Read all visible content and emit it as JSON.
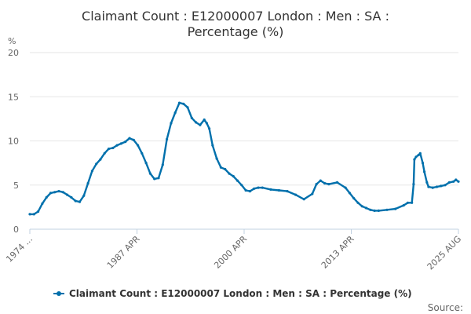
{
  "chart_data": {
    "type": "line",
    "title_lines": [
      "Claimant Count : E12000007 London : Men : SA :",
      "Percentage (%)"
    ],
    "ylabel": "%",
    "ylim": [
      0,
      20
    ],
    "y_ticks": [
      "0",
      "5",
      "10",
      "15",
      "20"
    ],
    "x_ticks": [
      "1974 ...",
      "1987 APR",
      "2000 APR",
      "2013 APR",
      "2025 AUG"
    ],
    "x_range": [
      1974.0,
      2025.6
    ],
    "grid": true,
    "legend_position": "bottom",
    "series": [
      {
        "name": "Claimant Count : E12000007 London : Men : SA : Percentage (%)",
        "color": "#0070ac",
        "x": [
          1974.0,
          1974.5,
          1975.0,
          1975.5,
          1976.0,
          1976.5,
          1977.0,
          1977.5,
          1978.0,
          1978.5,
          1979.0,
          1979.5,
          1980.0,
          1980.5,
          1981.0,
          1981.5,
          1982.0,
          1982.5,
          1983.0,
          1983.5,
          1984.0,
          1984.5,
          1985.0,
          1985.5,
          1986.0,
          1986.5,
          1987.0,
          1987.5,
          1988.0,
          1988.5,
          1989.0,
          1989.5,
          1990.0,
          1990.5,
          1991.0,
          1991.5,
          1992.0,
          1992.5,
          1993.0,
          1993.5,
          1994.0,
          1994.5,
          1995.0,
          1995.3,
          1995.6,
          1996.0,
          1996.5,
          1997.0,
          1997.5,
          1998.0,
          1998.5,
          1999.0,
          1999.5,
          2000.0,
          2000.5,
          2001.0,
          2001.5,
          2002.0,
          2003.0,
          2004.0,
          2005.0,
          2006.0,
          2007.0,
          2008.0,
          2008.5,
          2009.0,
          2009.5,
          2010.0,
          2011.0,
          2012.0,
          2012.5,
          2013.0,
          2013.5,
          2014.0,
          2014.5,
          2015.0,
          2015.5,
          2016.0,
          2017.0,
          2018.0,
          2019.0,
          2019.5,
          2020.0,
          2020.2,
          2020.3,
          2020.5,
          2020.8,
          2021.0,
          2021.3,
          2021.5,
          2021.8,
          2022.0,
          2022.5,
          2023.0,
          2023.5,
          2024.0,
          2024.5,
          2025.0,
          2025.3,
          2025.6
        ],
        "values": [
          1.7,
          1.7,
          2.0,
          2.9,
          3.6,
          4.1,
          4.2,
          4.3,
          4.2,
          3.9,
          3.6,
          3.2,
          3.1,
          3.8,
          5.2,
          6.6,
          7.4,
          7.9,
          8.6,
          9.1,
          9.2,
          9.5,
          9.7,
          9.9,
          10.3,
          10.1,
          9.5,
          8.6,
          7.5,
          6.3,
          5.7,
          5.8,
          7.3,
          10.2,
          12.0,
          13.2,
          14.3,
          14.2,
          13.8,
          12.6,
          12.1,
          11.8,
          12.4,
          12.0,
          11.4,
          9.5,
          8.0,
          7.0,
          6.8,
          6.3,
          6.0,
          5.5,
          5.0,
          4.4,
          4.3,
          4.6,
          4.7,
          4.7,
          4.5,
          4.4,
          4.3,
          3.9,
          3.4,
          4.0,
          5.1,
          5.5,
          5.2,
          5.1,
          5.3,
          4.7,
          4.1,
          3.5,
          3.0,
          2.6,
          2.4,
          2.2,
          2.1,
          2.1,
          2.2,
          2.3,
          2.7,
          3.0,
          3.0,
          5.1,
          7.9,
          8.2,
          8.4,
          8.6,
          7.5,
          6.5,
          5.3,
          4.8,
          4.7,
          4.8,
          4.9,
          5.0,
          5.3,
          5.4,
          5.6,
          5.4
        ]
      }
    ]
  },
  "footer": {
    "source_label": "Source:"
  }
}
